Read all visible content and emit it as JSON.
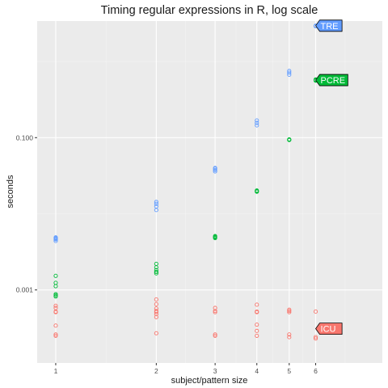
{
  "chart_data": {
    "type": "scatter",
    "title": "Timing regular expressions in R, log scale",
    "xlabel": "subject/pattern size",
    "ylabel": "seconds",
    "x_scale": "log",
    "y_scale": "log",
    "xlim": [
      0.88,
      9.5
    ],
    "ylim": [
      0.00011,
      3.4
    ],
    "x_ticks": [
      {
        "value": 1,
        "label": "1"
      },
      {
        "value": 2,
        "label": "2"
      },
      {
        "value": 3,
        "label": "3"
      },
      {
        "value": 4,
        "label": "4"
      },
      {
        "value": 5,
        "label": "5"
      },
      {
        "value": 6,
        "label": "6"
      }
    ],
    "x_minor_ticks": [
      1.414,
      2.449,
      3.464,
      4.472,
      5.477,
      7.348
    ],
    "y_ticks": [
      {
        "value": 0.001,
        "label": "0.001"
      },
      {
        "value": 0.1,
        "label": "0.100"
      }
    ],
    "y_minor_ticks": [
      0.01,
      1
    ],
    "grid": true,
    "legend": "direct labels at right end of each series",
    "series": [
      {
        "name": "TRE",
        "color": "#619CFF",
        "x": [
          1,
          1,
          1,
          1,
          1,
          2,
          2,
          2,
          2,
          3,
          3,
          3,
          3,
          4,
          4,
          4,
          5,
          5,
          5,
          6,
          6
        ],
        "y": [
          0.0044,
          0.0046,
          0.0047,
          0.0048,
          0.0049,
          0.0112,
          0.0125,
          0.0135,
          0.0143,
          0.036,
          0.0375,
          0.039,
          0.04,
          0.145,
          0.156,
          0.168,
          0.67,
          0.71,
          0.75,
          2.9,
          2.95
        ]
      },
      {
        "name": "PCRE",
        "color": "#00BA38",
        "x": [
          1,
          1,
          1,
          1,
          1,
          1,
          2,
          2,
          2,
          2,
          2,
          2,
          3,
          3,
          3,
          3,
          4,
          4,
          4,
          5,
          5,
          5,
          6,
          6,
          6
        ],
        "y": [
          0.00082,
          0.00088,
          0.00112,
          0.00124,
          0.00153,
          0.00085,
          0.00165,
          0.00172,
          0.00182,
          0.00198,
          0.0022,
          0.00172,
          0.0048,
          0.005,
          0.0051,
          0.0049,
          0.0195,
          0.0202,
          0.0198,
          0.093,
          0.095,
          0.094,
          0.56,
          0.57,
          0.58
        ]
      },
      {
        "name": "ICU",
        "color": "#F8766D",
        "x": [
          1,
          1,
          1,
          1,
          1,
          1,
          1,
          2,
          2,
          2,
          2,
          2,
          2,
          2,
          2,
          3,
          3,
          3,
          3,
          3,
          4,
          4,
          4,
          4,
          4,
          4,
          5,
          5,
          5,
          5,
          5,
          6,
          6,
          6
        ],
        "y": [
          0.00026,
          0.00025,
          0.00034,
          0.00051,
          0.00052,
          0.00058,
          0.00062,
          0.00027,
          0.00044,
          0.00048,
          0.00051,
          0.00053,
          0.00057,
          0.00065,
          0.00075,
          0.00025,
          0.00026,
          0.00051,
          0.00053,
          0.00058,
          0.00025,
          0.00029,
          0.00035,
          0.00051,
          0.00052,
          0.00064,
          0.00024,
          0.00026,
          0.00051,
          0.00053,
          0.00055,
          0.00023,
          0.00024,
          0.00052
        ]
      }
    ],
    "series_labels": [
      {
        "series": "TRE",
        "text": "TRE",
        "x": 6,
        "y": 2.95
      },
      {
        "series": "PCRE",
        "text": "PCRE",
        "x": 6,
        "y": 0.57
      },
      {
        "series": "ICU",
        "text": "ICU",
        "x": 6,
        "y": 0.00031
      }
    ]
  }
}
